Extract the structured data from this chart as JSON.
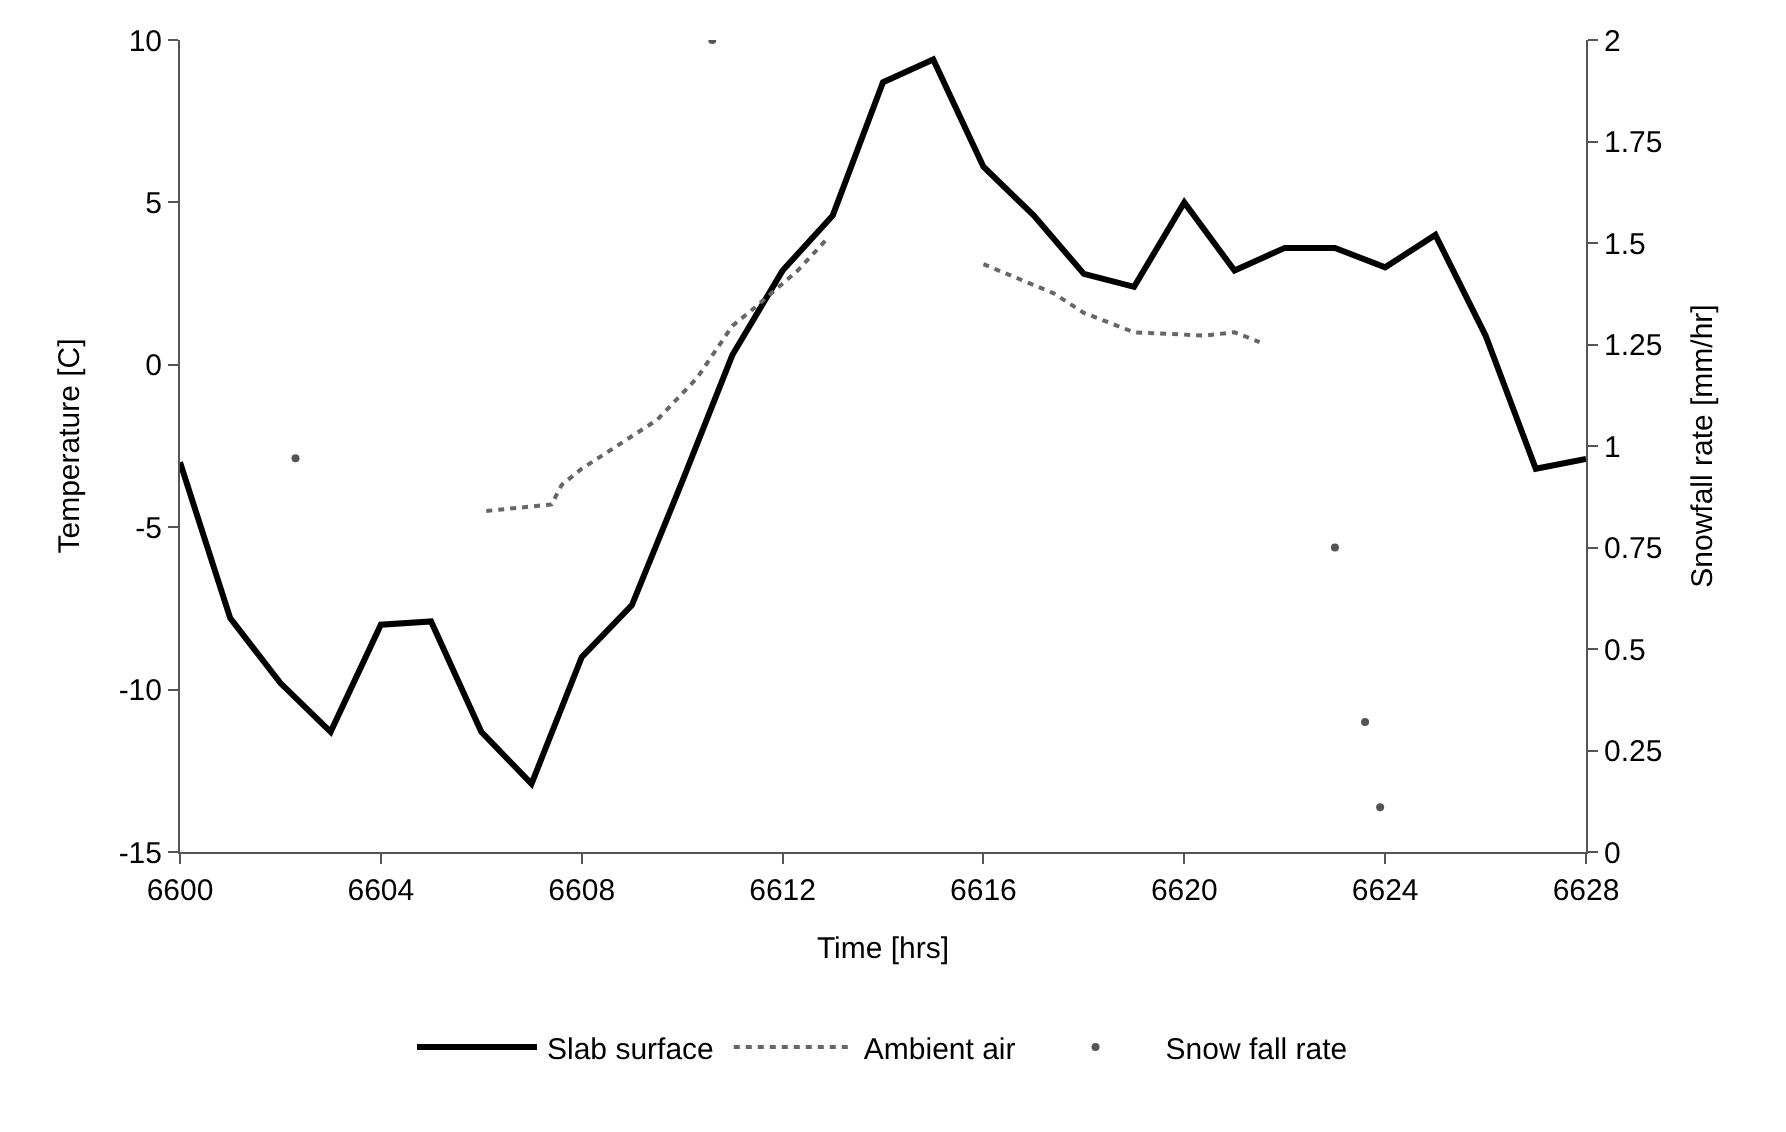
{
  "chart_data": {
    "type": "line",
    "xlabel": "Time [hrs]",
    "ylabel": "Temperature [C]",
    "y2label": "Snowfall rate [mm/hr]",
    "xlim": [
      6600,
      6628
    ],
    "xticks": [
      6600,
      6604,
      6608,
      6612,
      6616,
      6620,
      6624,
      6628
    ],
    "ylim": [
      -15,
      10
    ],
    "yticks": [
      -15,
      -10,
      -5,
      0,
      5,
      10
    ],
    "y2lim": [
      0,
      2
    ],
    "y2ticks": [
      0,
      0.25,
      0.5,
      0.75,
      1,
      1.25,
      1.5,
      1.75,
      2
    ],
    "legend": "bottom",
    "series": [
      {
        "name": "Slab surface",
        "color": "#000000",
        "line_style": "solid",
        "marker": "none",
        "x": [
          6600,
          6601,
          6602,
          6603,
          6604,
          6605,
          6606,
          6607,
          6608,
          6609,
          6610,
          6611,
          6612,
          6613,
          6614,
          6615,
          6616,
          6617,
          6618,
          6619,
          6620,
          6621,
          6622,
          6623,
          6624,
          6625,
          6626,
          6627,
          6628
        ],
        "values": [
          -3,
          -7.8,
          -9.8,
          -11.3,
          -8,
          -7.9,
          -11.3,
          -12.9,
          -9,
          -7.4,
          -3.6,
          0.3,
          2.9,
          4.6,
          8.7,
          9.4,
          6.1,
          4.6,
          2.8,
          2.4,
          5,
          2.9,
          3.6,
          3.6,
          3,
          4,
          0.9,
          -3.2,
          -2.9
        ]
      },
      {
        "name": "Ambient air",
        "color": "#666666",
        "line_style": "dotted",
        "marker": "none",
        "x": [
          6606.1,
          6607.4,
          6607.6,
          6608,
          6608.9,
          6609.5,
          6610.3,
          6611,
          6611.4,
          6612.3,
          6612.9,
          6614.5,
          6616,
          6617.4,
          6618,
          6619,
          6620.4,
          6621,
          6621.5
        ],
        "values": [
          -4.5,
          -4.3,
          -3.7,
          -3.2,
          -2.3,
          -1.7,
          -0.4,
          1.2,
          1.7,
          2.9,
          3.9,
          null,
          3.1,
          2.2,
          1.6,
          1,
          0.9,
          1,
          0.7
        ]
      },
      {
        "name": "Snow fall rate",
        "type": "scatter",
        "axis": "y2",
        "color": "#555555",
        "marker": "circle",
        "x": [
          6602.3,
          6610.6,
          6623,
          6623.6,
          6623.9
        ],
        "values": [
          0.97,
          2,
          0.75,
          0.32,
          0.11
        ]
      }
    ]
  }
}
